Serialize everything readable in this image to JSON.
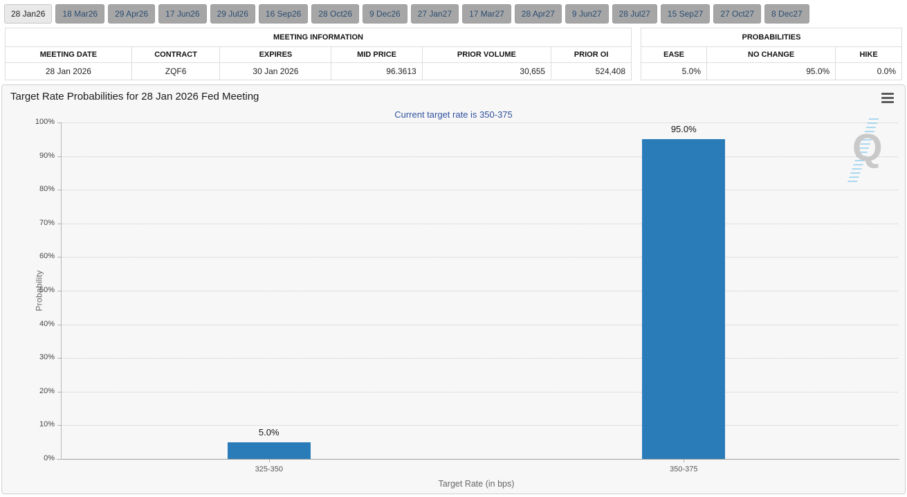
{
  "tabs": {
    "items": [
      {
        "label": "28 Jan26",
        "active": true
      },
      {
        "label": "18 Mar26",
        "active": false
      },
      {
        "label": "29 Apr26",
        "active": false
      },
      {
        "label": "17 Jun26",
        "active": false
      },
      {
        "label": "29 Jul26",
        "active": false
      },
      {
        "label": "16 Sep26",
        "active": false
      },
      {
        "label": "28 Oct26",
        "active": false
      },
      {
        "label": "9 Dec26",
        "active": false
      },
      {
        "label": "27 Jan27",
        "active": false
      },
      {
        "label": "17 Mar27",
        "active": false
      },
      {
        "label": "28 Apr27",
        "active": false
      },
      {
        "label": "9 Jun27",
        "active": false
      },
      {
        "label": "28 Jul27",
        "active": false
      },
      {
        "label": "15 Sep27",
        "active": false
      },
      {
        "label": "27 Oct27",
        "active": false
      },
      {
        "label": "8 Dec27",
        "active": false
      }
    ]
  },
  "meeting_info": {
    "title": "MEETING INFORMATION",
    "columns": [
      "MEETING DATE",
      "CONTRACT",
      "EXPIRES",
      "MID PRICE",
      "PRIOR VOLUME",
      "PRIOR OI"
    ],
    "row": [
      "28 Jan 2026",
      "ZQF6",
      "30 Jan 2026",
      "96.3613",
      "30,655",
      "524,408"
    ]
  },
  "probabilities": {
    "title": "PROBABILITIES",
    "columns": [
      "EASE",
      "NO CHANGE",
      "HIKE"
    ],
    "row": [
      "5.0%",
      "95.0%",
      "0.0%"
    ]
  },
  "icons": {
    "menu": "hamburger-icon",
    "watermark_letter": "Q"
  },
  "chart_data": {
    "type": "bar",
    "title": "Target Rate Probabilities for 28 Jan 2026 Fed Meeting",
    "subtitle": "Current target rate is 350-375",
    "categories": [
      "325-350",
      "350-375"
    ],
    "values": [
      5.0,
      95.0
    ],
    "value_labels": [
      "5.0%",
      "95.0%"
    ],
    "xlabel": "Target Rate (in bps)",
    "ylabel": "Probability",
    "ylim": [
      0,
      100
    ],
    "ytick_step": 10,
    "ytick_suffix": "%",
    "bar_color": "#2a7cb8",
    "grid": "dotted-horizontal",
    "legend": "none"
  }
}
